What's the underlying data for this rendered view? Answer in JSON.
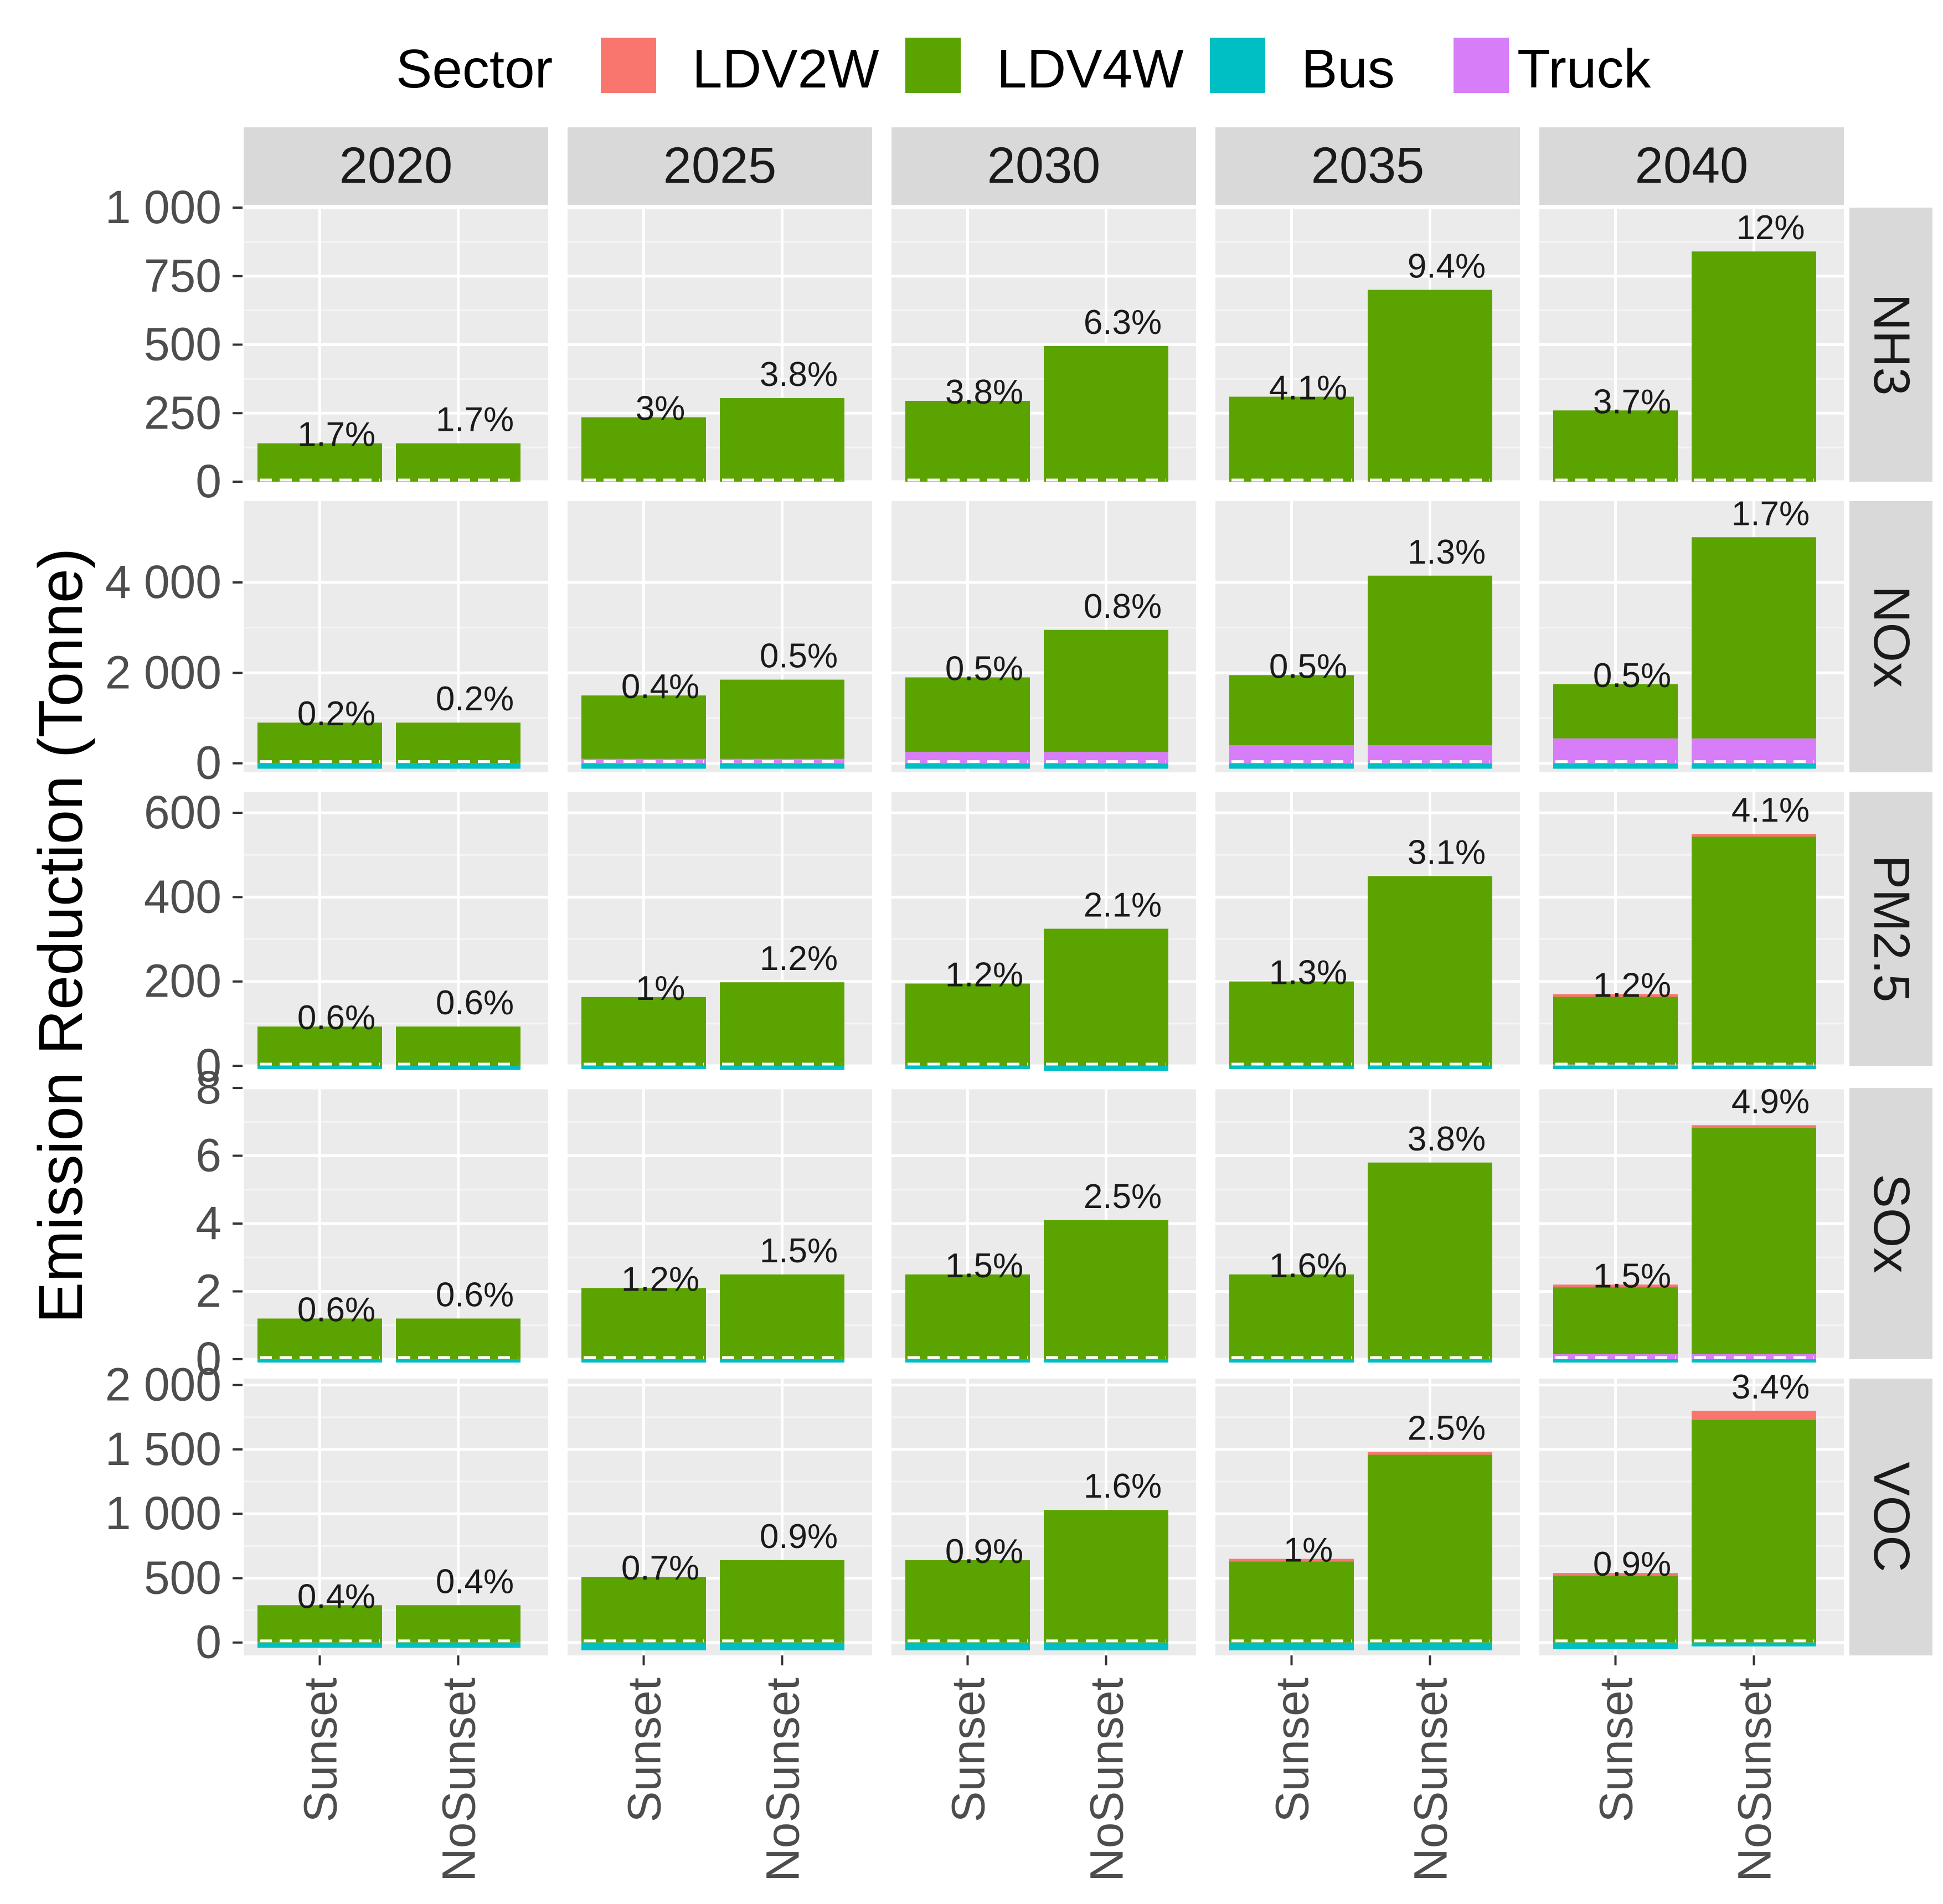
{
  "chart_data": {
    "type": "bar",
    "stacked": true,
    "ylabel": "Emission Reduction (Tonne)",
    "legend": {
      "title": "Sector",
      "position": "top",
      "entries": [
        {
          "name": "LDV2W",
          "color": "#F8766D"
        },
        {
          "name": "LDV4W",
          "color": "#5BA300"
        },
        {
          "name": "Bus",
          "color": "#00BFC4"
        },
        {
          "name": "Truck",
          "color": "#D77DF7"
        }
      ]
    },
    "years": [
      "2020",
      "2025",
      "2030",
      "2035",
      "2040"
    ],
    "scenarios": [
      "Sunset",
      "NoSunset"
    ],
    "facets": [
      {
        "pollutant": "NH3",
        "ylim": [
          0,
          1000
        ],
        "ticks": [
          0,
          250,
          500,
          750,
          1000
        ],
        "tick_labels": [
          "0",
          "250",
          "500",
          "750",
          "1 000"
        ],
        "total": [
          [
            140,
            140
          ],
          [
            235,
            305
          ],
          [
            295,
            495
          ],
          [
            310,
            700
          ],
          [
            260,
            840
          ]
        ],
        "truck": [
          [
            0,
            0
          ],
          [
            0,
            0
          ],
          [
            0,
            0
          ],
          [
            0,
            0
          ],
          [
            0,
            0
          ]
        ],
        "bus": [
          [
            0,
            0
          ],
          [
            0,
            0
          ],
          [
            0,
            0
          ],
          [
            0,
            0
          ],
          [
            0,
            0
          ]
        ],
        "ldv2w": [
          [
            0,
            0
          ],
          [
            0,
            0
          ],
          [
            0,
            0
          ],
          [
            0,
            0
          ],
          [
            0,
            0
          ]
        ],
        "labels": [
          [
            "1.7%",
            "1.7%"
          ],
          [
            "3%",
            "3.8%"
          ],
          [
            "3.8%",
            "6.3%"
          ],
          [
            "4.1%",
            "9.4%"
          ],
          [
            "3.7%",
            "12%"
          ]
        ]
      },
      {
        "pollutant": "NOx",
        "ylim": [
          -200,
          5800
        ],
        "ticks": [
          0,
          2000,
          4000
        ],
        "tick_labels": [
          "0",
          "2 000",
          "4 000"
        ],
        "total": [
          [
            900,
            900
          ],
          [
            1500,
            1850
          ],
          [
            1900,
            2950
          ],
          [
            1950,
            4150
          ],
          [
            1750,
            5000
          ]
        ],
        "truck": [
          [
            0,
            0
          ],
          [
            100,
            100
          ],
          [
            250,
            250
          ],
          [
            400,
            400
          ],
          [
            550,
            550
          ]
        ],
        "bus": [
          [
            -120,
            -120
          ],
          [
            -120,
            -120
          ],
          [
            -120,
            -120
          ],
          [
            -120,
            -120
          ],
          [
            -120,
            -120
          ]
        ],
        "ldv2w": [
          [
            0,
            0
          ],
          [
            0,
            0
          ],
          [
            0,
            0
          ],
          [
            0,
            0
          ],
          [
            0,
            0
          ]
        ],
        "labels": [
          [
            "0.2%",
            "0.2%"
          ],
          [
            "0.4%",
            "0.5%"
          ],
          [
            "0.5%",
            "0.8%"
          ],
          [
            "0.5%",
            "1.3%"
          ],
          [
            "0.5%",
            "1.7%"
          ]
        ]
      },
      {
        "pollutant": "PM2.5",
        "ylim": [
          0,
          650
        ],
        "ticks": [
          0,
          200,
          400,
          600
        ],
        "tick_labels": [
          "0",
          "200",
          "400",
          "600"
        ],
        "total": [
          [
            93,
            93
          ],
          [
            163,
            198
          ],
          [
            195,
            325
          ],
          [
            200,
            450
          ],
          [
            170,
            550
          ]
        ],
        "truck": [
          [
            0,
            0
          ],
          [
            0,
            0
          ],
          [
            0,
            0
          ],
          [
            0,
            0
          ],
          [
            3,
            3
          ]
        ],
        "bus": [
          [
            -5,
            -10
          ],
          [
            -5,
            -10
          ],
          [
            -5,
            -12
          ],
          [
            -5,
            -5
          ],
          [
            -5,
            -5
          ]
        ],
        "ldv2w": [
          [
            0,
            0
          ],
          [
            0,
            0
          ],
          [
            0,
            0
          ],
          [
            0,
            0
          ],
          [
            5,
            5
          ]
        ],
        "labels": [
          [
            "0.6%",
            "0.6%"
          ],
          [
            "1%",
            "1.2%"
          ],
          [
            "1.2%",
            "2.1%"
          ],
          [
            "1.3%",
            "3.1%"
          ],
          [
            "1.2%",
            "4.1%"
          ]
        ]
      },
      {
        "pollutant": "SOx",
        "ylim": [
          0,
          8
        ],
        "ticks": [
          0,
          2,
          4,
          6,
          8
        ],
        "tick_labels": [
          "0",
          "2",
          "4",
          "6",
          "8"
        ],
        "total": [
          [
            1.2,
            1.2
          ],
          [
            2.1,
            2.5
          ],
          [
            2.5,
            4.1
          ],
          [
            2.5,
            5.8
          ],
          [
            2.2,
            6.9
          ]
        ],
        "truck": [
          [
            0,
            0
          ],
          [
            0,
            0
          ],
          [
            0,
            0
          ],
          [
            0,
            0
          ],
          [
            0.15,
            0.15
          ]
        ],
        "bus": [
          [
            -0.05,
            -0.05
          ],
          [
            -0.05,
            -0.05
          ],
          [
            -0.05,
            -0.05
          ],
          [
            -0.05,
            -0.05
          ],
          [
            -0.05,
            -0.05
          ]
        ],
        "ldv2w": [
          [
            0,
            0
          ],
          [
            0,
            0
          ],
          [
            0,
            0
          ],
          [
            0,
            0
          ],
          [
            0.05,
            0.05
          ]
        ],
        "labels": [
          [
            "0.6%",
            "0.6%"
          ],
          [
            "1.2%",
            "1.5%"
          ],
          [
            "1.5%",
            "2.5%"
          ],
          [
            "1.6%",
            "3.8%"
          ],
          [
            "1.5%",
            "4.9%"
          ]
        ]
      },
      {
        "pollutant": "VOC",
        "ylim": [
          -100,
          2050
        ],
        "ticks": [
          0,
          500,
          1000,
          1500,
          2000
        ],
        "tick_labels": [
          "0",
          "500",
          "1 000",
          "1 500",
          "2 000"
        ],
        "total": [
          [
            290,
            290
          ],
          [
            510,
            640
          ],
          [
            640,
            1030
          ],
          [
            650,
            1480
          ],
          [
            540,
            1800
          ]
        ],
        "truck": [
          [
            0,
            0
          ],
          [
            0,
            0
          ],
          [
            0,
            0
          ],
          [
            0,
            0
          ],
          [
            0,
            0
          ]
        ],
        "bus": [
          [
            -40,
            -40
          ],
          [
            -60,
            -60
          ],
          [
            -60,
            -60
          ],
          [
            -60,
            -60
          ],
          [
            -50,
            -30
          ]
        ],
        "ldv2w": [
          [
            0,
            0
          ],
          [
            0,
            0
          ],
          [
            0,
            0
          ],
          [
            20,
            15
          ],
          [
            20,
            70
          ]
        ],
        "labels": [
          [
            "0.4%",
            "0.4%"
          ],
          [
            "0.7%",
            "0.9%"
          ],
          [
            "0.9%",
            "1.6%"
          ],
          [
            "1%",
            "2.5%"
          ],
          [
            "0.9%",
            "3.4%"
          ]
        ]
      }
    ]
  }
}
